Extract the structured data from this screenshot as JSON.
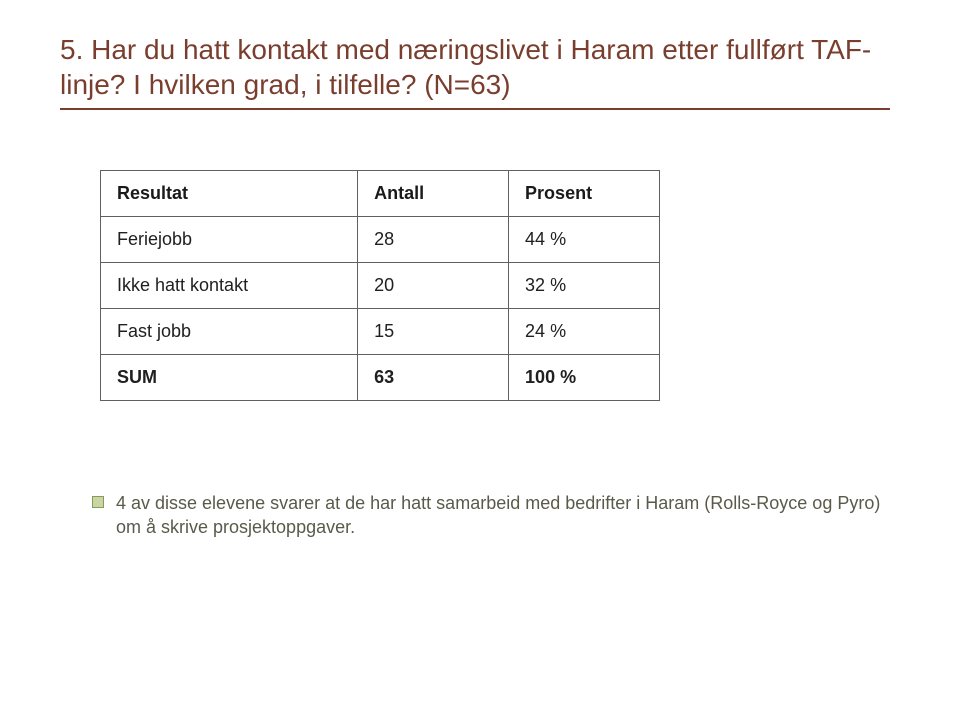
{
  "title_color": "#7a3e2e",
  "rule_color": "#7a3e2e",
  "bullet_border_color": "#8a9a5b",
  "bullet_fill_color": "#c9d6a3",
  "text_color": "#5a5a4a",
  "title": "5. Har du hatt kontakt med næringslivet i Haram etter fullført TAF-linje? I hvilken grad, i tilfelle? (N=63)",
  "table": {
    "columns": [
      "Resultat",
      "Antall",
      "Prosent"
    ],
    "rows": [
      [
        "Feriejobb",
        "28",
        "44 %"
      ],
      [
        "Ikke hatt kontakt",
        "20",
        "32 %"
      ],
      [
        "Fast jobb",
        "15",
        "24 %"
      ]
    ],
    "sum_row": [
      "SUM",
      "63",
      "100 %"
    ]
  },
  "bullet": "4 av disse elevene svarer at de har hatt samarbeid med bedrifter i Haram (Rolls-Royce og Pyro) om å skrive prosjektoppgaver."
}
